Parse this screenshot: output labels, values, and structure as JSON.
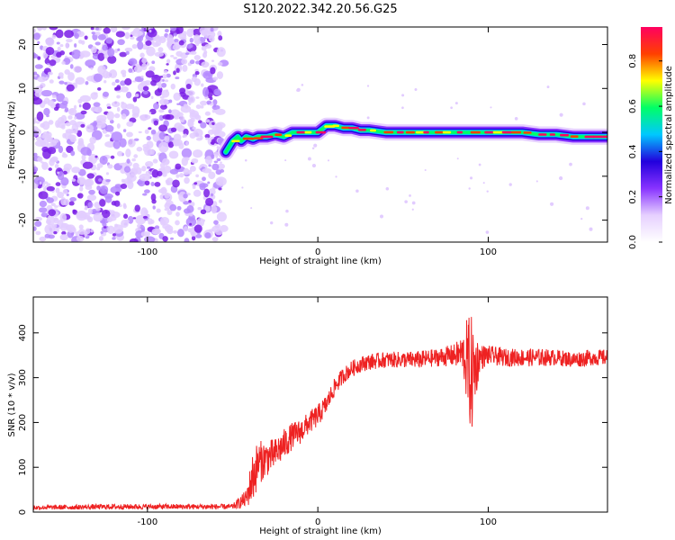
{
  "title": "S120.2022.342.20.56.G25",
  "colors": {
    "snr_line": "#ee2222",
    "noise": "#8a2be2",
    "colormap": [
      "#ffffff",
      "#e6d0ff",
      "#8833ff",
      "#2200dd",
      "#00c8ff",
      "#00ff66",
      "#ffff00",
      "#ff4000",
      "#ff0060"
    ]
  },
  "chart_data": [
    {
      "type": "heatmap",
      "xlabel": "Height of straight line (km)",
      "ylabel": "Frequency (Hz)",
      "xlim": [
        -167,
        170
      ],
      "ylim": [
        -25,
        24
      ],
      "x_ticks": [
        -100,
        0,
        100
      ],
      "y_ticks": [
        -20,
        -10,
        0,
        10,
        20
      ],
      "noise_region_x": [
        -167,
        -55
      ],
      "ridge": {
        "x": [
          -54,
          -50,
          -47,
          -45,
          -42,
          -38,
          -35,
          -30,
          -25,
          -20,
          -15,
          -10,
          -5,
          0,
          5,
          10,
          15,
          20,
          25,
          30,
          40,
          50,
          60,
          70,
          80,
          90,
          100,
          110,
          120,
          130,
          140,
          150,
          160,
          170
        ],
        "y": [
          -4.5,
          -2.0,
          -1.0,
          -2.0,
          -1.0,
          -1.5,
          -1.0,
          -1.0,
          -0.5,
          -1.0,
          0.0,
          0.0,
          0.0,
          0.0,
          1.5,
          1.5,
          1.0,
          1.0,
          0.5,
          0.5,
          0.0,
          0.0,
          0.0,
          0.0,
          0.0,
          0.0,
          0.0,
          0.0,
          0.0,
          -0.5,
          -0.5,
          -1.0,
          -1.0,
          -1.0
        ]
      },
      "colorbar": {
        "label": "Normalized spectral amplitude",
        "range": [
          0.0,
          0.95
        ],
        "ticks": [
          "0.0",
          "0.2",
          "0.4",
          "0.6",
          "0.8"
        ],
        "tick_values": [
          0.0,
          0.2,
          0.4,
          0.6,
          0.8
        ]
      }
    },
    {
      "type": "line",
      "xlabel": "Height of straight line (km)",
      "ylabel": "SNR (10 * v/v)",
      "xlim": [
        -167,
        170
      ],
      "ylim": [
        0,
        480
      ],
      "x_ticks": [
        -100,
        0,
        100
      ],
      "y_ticks": [
        0,
        100,
        200,
        300,
        400
      ],
      "series": [
        {
          "x": [
            -167,
            -120,
            -80,
            -50,
            -42,
            -38,
            -35,
            -30,
            -25,
            -20,
            -15,
            -10,
            -5,
            0,
            5,
            10,
            15,
            20,
            25,
            30,
            40,
            50,
            60,
            70,
            80,
            85,
            88,
            90,
            92,
            95,
            100,
            110,
            120,
            130,
            140,
            150,
            160,
            170
          ],
          "values": [
            10,
            12,
            12,
            12,
            30,
            80,
            110,
            120,
            130,
            150,
            170,
            180,
            200,
            215,
            240,
            280,
            305,
            320,
            330,
            335,
            340,
            340,
            340,
            345,
            350,
            355,
            330,
            300,
            320,
            345,
            350,
            345,
            345,
            345,
            345,
            340,
            345,
            345
          ],
          "noise_amplitude": [
            5,
            6,
            6,
            6,
            20,
            60,
            50,
            40,
            35,
            35,
            30,
            28,
            25,
            25,
            22,
            20,
            18,
            18,
            18,
            18,
            18,
            18,
            20,
            20,
            25,
            40,
            110,
            140,
            90,
            30,
            22,
            20,
            20,
            20,
            18,
            18,
            18,
            18
          ]
        }
      ]
    }
  ]
}
